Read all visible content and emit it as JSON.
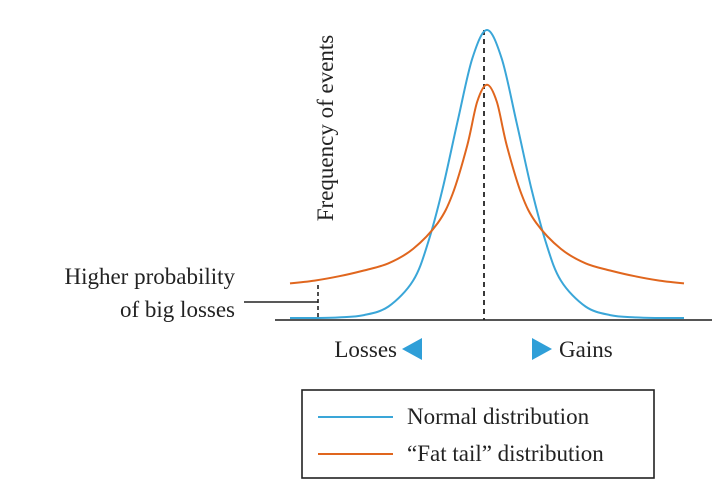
{
  "chart_data": {
    "type": "line",
    "ylabel": "Frequency of events",
    "annotation_lines": [
      "Higher probability",
      "of big losses"
    ],
    "direction_labels": {
      "left": "Losses",
      "right": "Gains"
    },
    "xlim": [
      -4,
      4
    ],
    "ylim": [
      0,
      1
    ],
    "series": [
      {
        "name": "Normal distribution",
        "color": "#3aa6d8",
        "x": [
          -4.0,
          -3.5,
          -3.0,
          -2.5,
          -2.0,
          -1.5,
          -1.2,
          -0.9,
          -0.6,
          -0.3,
          0.0,
          0.3,
          0.6,
          0.9,
          1.2,
          1.5,
          2.0,
          2.5,
          3.0,
          3.5,
          4.0
        ],
        "y": [
          0.0,
          0.0,
          0.002,
          0.01,
          0.04,
          0.13,
          0.26,
          0.45,
          0.68,
          0.9,
          1.0,
          0.9,
          0.68,
          0.45,
          0.26,
          0.13,
          0.04,
          0.01,
          0.002,
          0.0,
          0.0
        ]
      },
      {
        "name": "“Fat tail” distribution",
        "color": "#e0661e",
        "x": [
          -4.0,
          -3.5,
          -3.0,
          -2.5,
          -2.0,
          -1.5,
          -1.0,
          -0.7,
          -0.4,
          -0.2,
          0.0,
          0.2,
          0.4,
          0.7,
          1.0,
          1.5,
          2.0,
          2.5,
          3.0,
          3.5,
          4.0
        ],
        "y": [
          0.12,
          0.13,
          0.145,
          0.165,
          0.19,
          0.24,
          0.33,
          0.43,
          0.6,
          0.75,
          0.81,
          0.75,
          0.6,
          0.43,
          0.33,
          0.24,
          0.19,
          0.165,
          0.145,
          0.13,
          0.12
        ]
      }
    ],
    "legend_position": "bottom-right"
  }
}
